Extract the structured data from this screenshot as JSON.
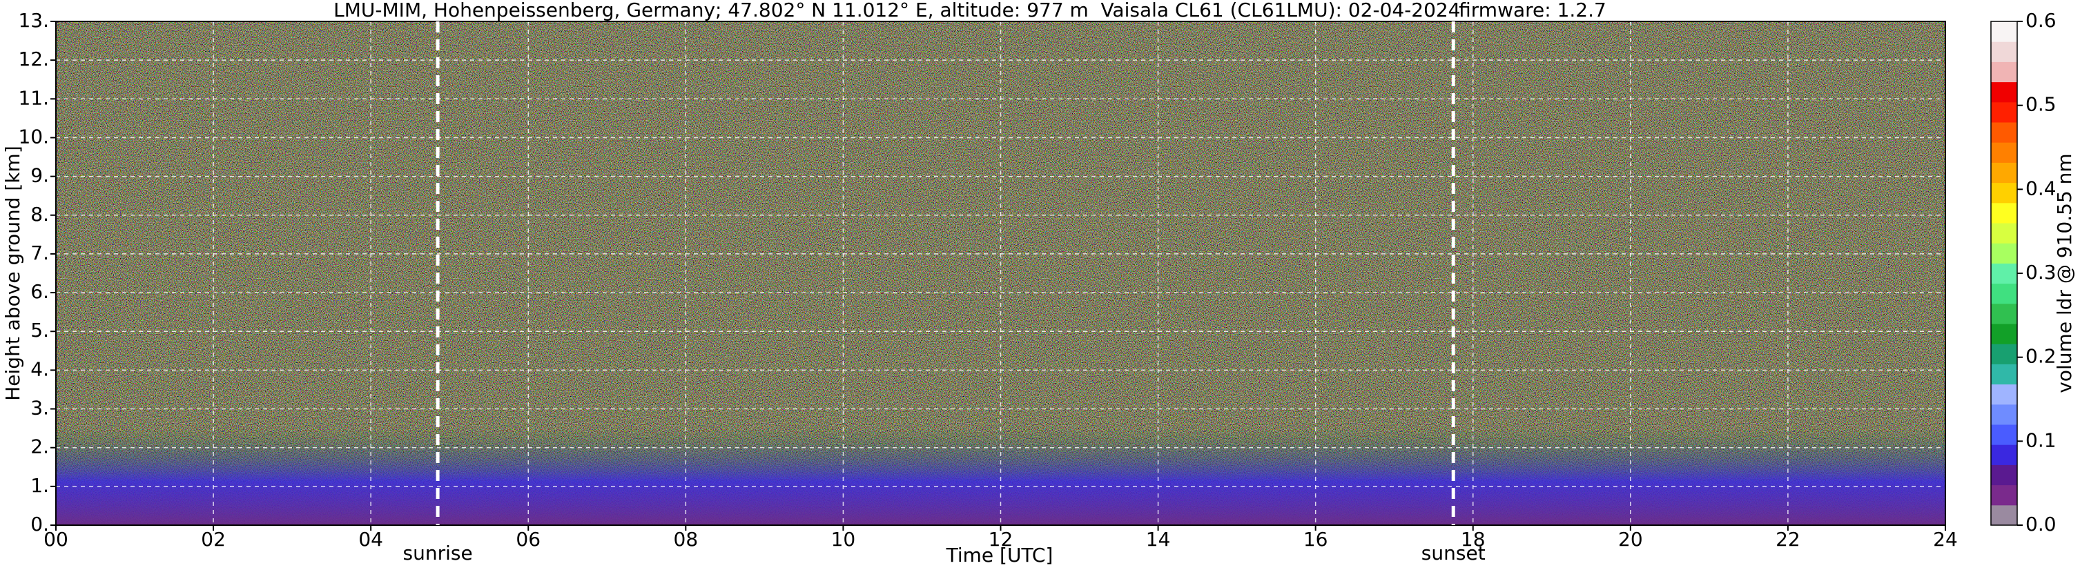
{
  "chart_data": {
    "type": "heatmap",
    "title": [
      "LMU-MIM, Hohenpeissenberg, Germany; 47.802° N 11.012° E, altitude: 977 m",
      "Vaisala CL61 (CL61LMU): 02-04-2024",
      "firmware: 1.2.7"
    ],
    "x_label": "Time [UTC]",
    "y_label": "Height above ground [km]",
    "colorbar_label": "volume ldr @ 910.55 nm",
    "xlim": [
      0,
      24
    ],
    "xticks": [
      {
        "value": 0,
        "label": "00"
      },
      {
        "value": 2,
        "label": "02"
      },
      {
        "value": 4,
        "label": "04"
      },
      {
        "value": 6,
        "label": "06"
      },
      {
        "value": 8,
        "label": "08"
      },
      {
        "value": 10,
        "label": "10"
      },
      {
        "value": 12,
        "label": "12"
      },
      {
        "value": 14,
        "label": "14"
      },
      {
        "value": 16,
        "label": "16"
      },
      {
        "value": 18,
        "label": "18"
      },
      {
        "value": 20,
        "label": "20"
      },
      {
        "value": 22,
        "label": "22"
      },
      {
        "value": 24,
        "label": "24"
      }
    ],
    "ylim": [
      0,
      13
    ],
    "yticks": [
      {
        "value": 0,
        "label": "0."
      },
      {
        "value": 1,
        "label": "1."
      },
      {
        "value": 2,
        "label": "2."
      },
      {
        "value": 3,
        "label": "3."
      },
      {
        "value": 4,
        "label": "4."
      },
      {
        "value": 5,
        "label": "5."
      },
      {
        "value": 6,
        "label": "6."
      },
      {
        "value": 7,
        "label": "7."
      },
      {
        "value": 8,
        "label": "8."
      },
      {
        "value": 9,
        "label": "9."
      },
      {
        "value": 10,
        "label": "10."
      },
      {
        "value": 11,
        "label": "11."
      },
      {
        "value": 12,
        "label": "12."
      },
      {
        "value": 13,
        "label": "13."
      }
    ],
    "clim": [
      0,
      0.6
    ],
    "cticks": [
      {
        "value": 0,
        "label": "0.0"
      },
      0.1,
      0.2,
      0.3,
      0.4,
      0.5,
      0.6
    ],
    "colorbar_colors": [
      "#9a8aa0",
      "#7a2a8c",
      "#5a1a90",
      "#3a28e0",
      "#4a5cff",
      "#6f8cff",
      "#9fb4ff",
      "#30b8a8",
      "#18a070",
      "#12a028",
      "#30c050",
      "#40e080",
      "#60f0a8",
      "#a8ff60",
      "#d8ff40",
      "#ffff20",
      "#ffd000",
      "#ffa800",
      "#ff8000",
      "#ff5a00",
      "#ff2000",
      "#f00000",
      "#f0b4b4",
      "#f0d8d8",
      "#f8f4f4"
    ],
    "grid": true,
    "annotations": [
      {
        "text": "sunrise",
        "x": 4.85
      },
      {
        "text": "sunset",
        "x": 17.75
      }
    ]
  }
}
